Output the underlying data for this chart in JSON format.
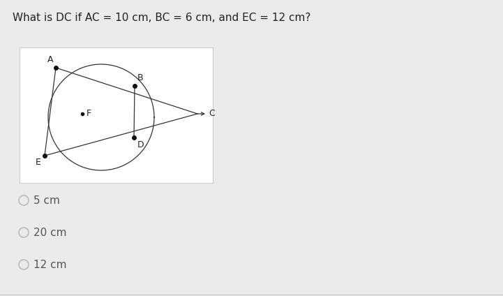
{
  "title": "What is DC if AC = 10 cm, BC = 6 cm, and EC = 12 cm?",
  "title_fontsize": 11,
  "background_color": "#ebebeb",
  "diagram_bg": "#ffffff",
  "line_color": "#333333",
  "dot_color": "#111111",
  "dot_size": 4,
  "label_fontsize": 9,
  "option_fontsize": 11,
  "options": [
    "5 cm",
    "20 cm",
    "12 cm"
  ],
  "radio_color": "#bbbbbb"
}
